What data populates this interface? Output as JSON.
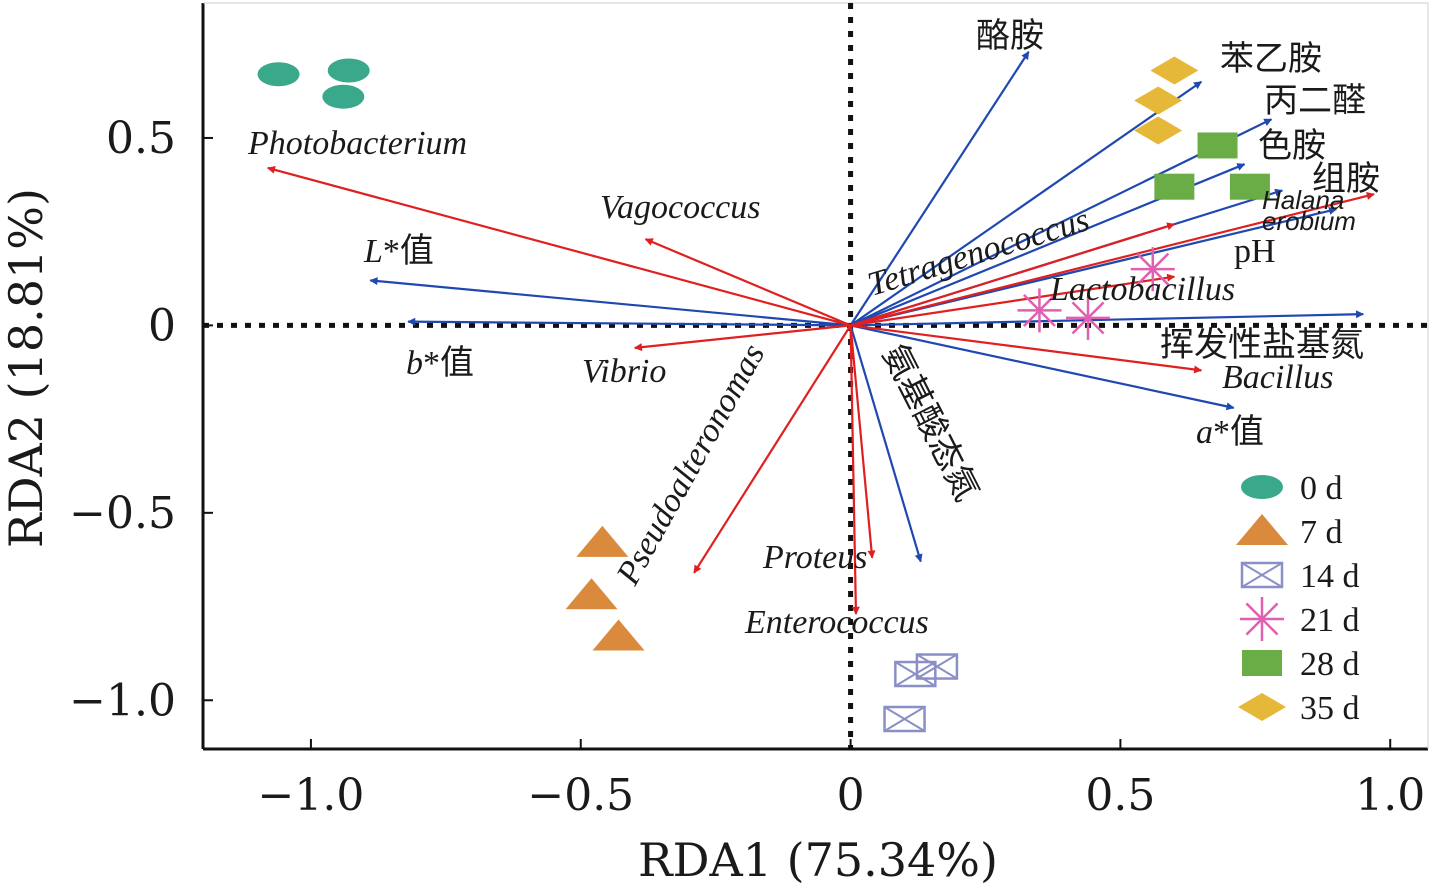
{
  "chart_data": {
    "type": "scatter",
    "xlabel": "RDA1 (75.34%)",
    "ylabel": "RDA2 (18.81%)",
    "xlim": [
      -1.2,
      1.07
    ],
    "ylim": [
      -1.13,
      0.86
    ],
    "xticks": [
      {
        "value": -1.0,
        "label": "−1.0"
      },
      {
        "value": -0.5,
        "label": "−0.5"
      },
      {
        "value": 0,
        "label": "0"
      },
      {
        "value": 0.5,
        "label": "0.5"
      },
      {
        "value": 1.0,
        "label": "1.0"
      }
    ],
    "yticks": [
      {
        "value": 0.5,
        "label": "0.5"
      },
      {
        "value": 0,
        "label": "0"
      },
      {
        "value": -0.5,
        "label": "−0.5"
      },
      {
        "value": -1.0,
        "label": "−1.0"
      }
    ],
    "grid": false,
    "zero_lines": true,
    "legend_position": "bottom-right",
    "colors": {
      "species_arrow": "#e02020",
      "env_arrow": "#1f48b0",
      "0 d": "#3aa88a",
      "7 d": "#d98a3c",
      "14 d": "#8a8fc8",
      "21 d": "#e060b0",
      "28 d": "#6aad46",
      "35 d": "#e6b83a"
    },
    "species_arrows": [
      {
        "label": "Photobacterium",
        "x": -1.08,
        "y": 0.42
      },
      {
        "label": "Vagococcus",
        "x": -0.38,
        "y": 0.23
      },
      {
        "label": "Vibrio",
        "x": -0.4,
        "y": -0.06
      },
      {
        "label": "Pseudoalteronomas",
        "x": -0.29,
        "y": -0.66
      },
      {
        "label": "Proteus",
        "x": 0.04,
        "y": -0.62
      },
      {
        "label": "Enterococcus",
        "x": 0.01,
        "y": -0.77
      },
      {
        "label": "Tetragenococcus",
        "x": 0.6,
        "y": 0.27
      },
      {
        "label": "Lactobacillus",
        "x": 0.6,
        "y": 0.13
      },
      {
        "label": "Bacillus",
        "x": 0.65,
        "y": -0.12
      },
      {
        "label": "Halanaerobium",
        "x": 0.97,
        "y": 0.35
      }
    ],
    "environmental_arrows": [
      {
        "label": "酪胺",
        "x": 0.33,
        "y": 0.73
      },
      {
        "label": "苯乙胺",
        "x": 0.65,
        "y": 0.65
      },
      {
        "label": "丙二醛",
        "x": 0.78,
        "y": 0.55
      },
      {
        "label": "色胺",
        "x": 0.73,
        "y": 0.43
      },
      {
        "label": "组胺",
        "x": 0.8,
        "y": 0.36
      },
      {
        "label": "pH",
        "x": 0.9,
        "y": 0.31
      },
      {
        "label": "挥发性盐基氮",
        "x": 0.95,
        "y": 0.03
      },
      {
        "label": "a*值",
        "x": 0.71,
        "y": -0.22
      },
      {
        "label": "L*值",
        "x": -0.89,
        "y": 0.12
      },
      {
        "label": "b*值",
        "x": -0.82,
        "y": 0.01
      },
      {
        "label": "氨基酸态氮",
        "x": 0.13,
        "y": -0.63
      }
    ],
    "series": [
      {
        "name": "0 d",
        "marker": "ellipse",
        "points": [
          [
            -1.06,
            0.67
          ],
          [
            -0.93,
            0.68
          ],
          [
            -0.94,
            0.61
          ]
        ]
      },
      {
        "name": "7 d",
        "marker": "triangle",
        "points": [
          [
            -0.46,
            -0.58
          ],
          [
            -0.48,
            -0.72
          ],
          [
            -0.43,
            -0.83
          ]
        ]
      },
      {
        "name": "14 d",
        "marker": "box-x",
        "points": [
          [
            0.12,
            -0.93
          ],
          [
            0.16,
            -0.91
          ],
          [
            0.1,
            -1.05
          ]
        ]
      },
      {
        "name": "21 d",
        "marker": "asterisk",
        "points": [
          [
            0.56,
            0.15
          ],
          [
            0.35,
            0.04
          ],
          [
            0.44,
            0.02
          ]
        ]
      },
      {
        "name": "28 d",
        "marker": "square",
        "points": [
          [
            0.68,
            0.48
          ],
          [
            0.6,
            0.37
          ],
          [
            0.74,
            0.37
          ]
        ]
      },
      {
        "name": "35 d",
        "marker": "diamond",
        "points": [
          [
            0.6,
            0.68
          ],
          [
            0.57,
            0.6
          ],
          [
            0.57,
            0.52
          ]
        ]
      }
    ]
  }
}
